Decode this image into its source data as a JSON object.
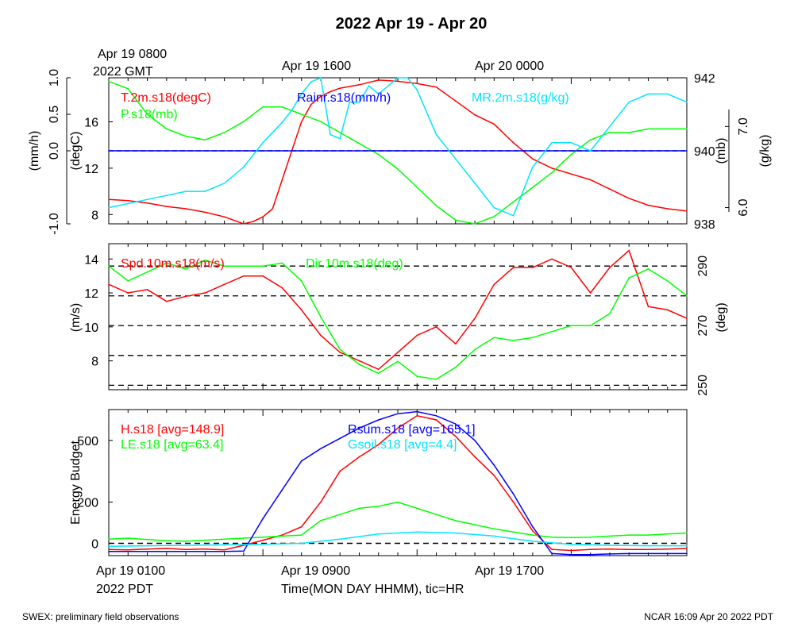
{
  "title": "2022 Apr 19 - Apr 20",
  "top_time_labels": {
    "start_line1": "Apr 19 0800",
    "start_line2": "2022 GMT",
    "mid": "Apr 19 1600",
    "end": "Apr 20 0000"
  },
  "bottom_time_labels": {
    "start": "Apr 19 0100",
    "tz": "2022 PDT",
    "mid": "Apr 19 0900",
    "end": "Apr 19 1700",
    "xlabel": "Time(MON DAY HHMM), tic=HR"
  },
  "footer": {
    "left": "SWEX: preliminary field observations",
    "right": "NCAR 16:09 Apr 20 2022 PDT"
  },
  "colors": {
    "red": "#ff0000",
    "green": "#00ff00",
    "blue": "#0000ff",
    "cyan": "#00e5ff"
  },
  "chart_data": [
    {
      "type": "line",
      "panel": "top",
      "x_units": "hours since Apr 19 0100 PDT",
      "xlim": [
        0,
        30
      ],
      "axes": {
        "rain": {
          "label": "(mm/h)",
          "ticks": [
            "-1.0",
            "0.0",
            "0.5",
            "1.0"
          ],
          "lim": [
            -1,
            1
          ]
        },
        "temp": {
          "label": "(degC)",
          "ticks": [
            "8",
            "12",
            "16"
          ],
          "lim": [
            7.2,
            19.8
          ]
        },
        "pres": {
          "label": "(mb)",
          "ticks": [
            "938",
            "940",
            "942"
          ],
          "lim": [
            938,
            942
          ]
        },
        "mr": {
          "label": "(g/kg)",
          "ticks": [
            "6.0",
            "7.0"
          ],
          "lim": [
            5.8,
            7.6
          ]
        }
      },
      "series": [
        {
          "name": "T.2m.s18(degC)",
          "color": "#ff0000",
          "axis": "temp",
          "x": [
            0,
            1,
            2,
            3,
            4,
            5,
            6,
            7,
            7.5,
            8,
            8.5,
            9,
            9.5,
            10,
            10.5,
            11,
            11.5,
            12,
            13,
            14,
            15,
            16,
            17,
            18,
            19,
            20,
            21,
            22,
            23,
            24,
            25,
            26,
            27,
            28,
            29,
            30
          ],
          "y": [
            9.3,
            9.2,
            9.0,
            8.7,
            8.5,
            8.2,
            7.8,
            7.2,
            7.4,
            7.8,
            8.5,
            11.0,
            13.5,
            16.0,
            17.5,
            18.2,
            18.6,
            18.9,
            19.2,
            19.6,
            19.5,
            19.3,
            19.0,
            17.8,
            16.6,
            15.8,
            14.2,
            12.8,
            12.0,
            11.5,
            11.0,
            10.2,
            9.4,
            8.8,
            8.5,
            8.3
          ]
        },
        {
          "name": "P.s18(mb)",
          "color": "#00ff00",
          "axis": "pres",
          "x": [
            0,
            1,
            2,
            3,
            4,
            5,
            6,
            7,
            8,
            9,
            10,
            11,
            12,
            13,
            14,
            15,
            16,
            17,
            18,
            19,
            20,
            21,
            22,
            23,
            24,
            25,
            26,
            27,
            28,
            29,
            30
          ],
          "y": [
            941.9,
            941.7,
            941.0,
            940.6,
            940.4,
            940.3,
            940.5,
            940.8,
            941.2,
            941.2,
            941.0,
            940.8,
            940.5,
            940.2,
            939.9,
            939.5,
            939.0,
            938.5,
            938.1,
            938.0,
            938.2,
            938.6,
            939.0,
            939.4,
            939.9,
            940.3,
            940.5,
            940.5,
            940.6,
            940.6,
            940.6
          ]
        },
        {
          "name": "Rainr.s18(mm/h)",
          "color": "#0000ff",
          "axis": "rain",
          "x": [
            0,
            30
          ],
          "y": [
            0,
            0
          ]
        },
        {
          "name": "MR.2m.s18(g/kg)",
          "color": "#00e5ff",
          "axis": "mr",
          "x": [
            0,
            1,
            2,
            3,
            4,
            5,
            6,
            7,
            8,
            9,
            9.5,
            10,
            10.5,
            11,
            11.5,
            12,
            12.5,
            13,
            13.5,
            14,
            14.5,
            15,
            15.5,
            16,
            17,
            18,
            19,
            20,
            21,
            22,
            23,
            24,
            25,
            26,
            27,
            28,
            29,
            30
          ],
          "y": [
            6.0,
            6.05,
            6.1,
            6.15,
            6.2,
            6.2,
            6.3,
            6.5,
            6.8,
            7.05,
            7.2,
            7.4,
            7.55,
            7.6,
            6.9,
            6.85,
            7.3,
            7.3,
            7.5,
            7.4,
            7.5,
            7.6,
            7.6,
            7.45,
            6.9,
            6.6,
            6.3,
            6.0,
            5.9,
            6.5,
            6.8,
            6.8,
            6.7,
            7.0,
            7.3,
            7.4,
            7.4,
            7.3
          ]
        }
      ]
    },
    {
      "type": "line",
      "panel": "middle",
      "x_units": "hours since Apr 19 0100 PDT",
      "xlim": [
        0,
        30
      ],
      "axes": {
        "spd": {
          "label": "(m/s)",
          "ticks": [
            "8",
            "10",
            "12",
            "14"
          ],
          "lim": [
            6.3,
            14.9
          ]
        },
        "dir": {
          "label": "(deg)",
          "ticks": [
            "250",
            "270",
            "290"
          ],
          "lim": [
            248.5,
            297.5
          ]
        }
      },
      "dir_gridlines": [
        250,
        260,
        270,
        280,
        290
      ],
      "series": [
        {
          "name": "Spd.10m.s18(m/s)",
          "color": "#ff0000",
          "axis": "spd",
          "x": [
            0,
            1,
            2,
            3,
            4,
            5,
            6,
            7,
            8,
            9,
            10,
            11,
            12,
            13,
            14,
            15,
            16,
            17,
            18,
            19,
            20,
            21,
            22,
            23,
            24,
            25,
            26,
            27,
            28,
            29,
            30
          ],
          "y": [
            12.5,
            12.0,
            12.2,
            11.5,
            11.8,
            12.0,
            12.5,
            13.0,
            13.0,
            12.3,
            11.0,
            9.5,
            8.5,
            8.0,
            7.5,
            8.5,
            9.5,
            10.0,
            9.0,
            10.5,
            12.5,
            13.5,
            13.5,
            14.0,
            13.5,
            12.0,
            13.5,
            14.5,
            11.2,
            11.0,
            10.5
          ]
        },
        {
          "name": "Dir.10m.s18(deg)",
          "color": "#00ff00",
          "axis": "dir",
          "x": [
            0,
            1,
            2,
            3,
            4,
            5,
            6,
            7,
            8,
            9,
            10,
            11,
            12,
            13,
            14,
            15,
            16,
            17,
            18,
            19,
            20,
            21,
            22,
            23,
            24,
            25,
            26,
            27,
            28,
            29,
            30
          ],
          "y": [
            290,
            285,
            288,
            291,
            289,
            292,
            290,
            290,
            290,
            291,
            285,
            273,
            262,
            257,
            254,
            258,
            253,
            252,
            256,
            262,
            266,
            265,
            266,
            268,
            270,
            270,
            274,
            286,
            289,
            285,
            280
          ]
        }
      ]
    },
    {
      "type": "line",
      "panel": "bottom",
      "x_units": "hours since Apr 19 0100 PDT",
      "xlim": [
        0,
        30
      ],
      "ylabel": "Energy Budget",
      "yticks": [
        "0",
        "200",
        "500"
      ],
      "ylim": [
        -60,
        650
      ],
      "series": [
        {
          "name": "H.s18",
          "stat": "[avg=148.9]",
          "color": "#ff0000",
          "x": [
            0,
            1,
            2,
            3,
            4,
            5,
            6,
            7,
            8,
            9,
            10,
            11,
            12,
            13,
            14,
            15,
            16,
            17,
            18,
            19,
            20,
            21,
            22,
            23,
            24,
            25,
            26,
            27,
            28,
            29,
            30
          ],
          "y": [
            -30,
            -32,
            -28,
            -25,
            -30,
            -28,
            -32,
            -10,
            15,
            40,
            80,
            200,
            350,
            420,
            480,
            560,
            620,
            600,
            520,
            420,
            330,
            200,
            60,
            -30,
            -35,
            -30,
            -28,
            -30,
            -30,
            -28,
            -25
          ]
        },
        {
          "name": "LE.s18",
          "stat": "[avg=63.4]",
          "color": "#00ff00",
          "x": [
            0,
            1,
            2,
            3,
            4,
            5,
            6,
            7,
            8,
            9,
            10,
            11,
            12,
            13,
            14,
            15,
            16,
            17,
            18,
            19,
            20,
            21,
            22,
            23,
            24,
            25,
            26,
            27,
            28,
            29,
            30
          ],
          "y": [
            20,
            25,
            18,
            12,
            10,
            15,
            20,
            25,
            30,
            35,
            40,
            110,
            140,
            170,
            180,
            200,
            170,
            140,
            110,
            90,
            70,
            55,
            40,
            30,
            28,
            30,
            35,
            40,
            40,
            45,
            50
          ]
        },
        {
          "name": "Rsum.s18",
          "stat": "[avg=165.1]",
          "color": "#0000ff",
          "x": [
            0,
            1,
            2,
            3,
            4,
            5,
            6,
            7,
            8,
            9,
            10,
            11,
            12,
            13,
            14,
            15,
            16,
            17,
            18,
            19,
            20,
            21,
            22,
            23,
            24,
            25,
            26,
            27,
            28,
            29,
            30
          ],
          "y": [
            -40,
            -40,
            -40,
            -40,
            -40,
            -40,
            -40,
            -38,
            120,
            260,
            400,
            460,
            510,
            560,
            600,
            630,
            640,
            620,
            580,
            500,
            380,
            240,
            80,
            -50,
            -55,
            -55,
            -52,
            -50,
            -50,
            -50,
            -50
          ]
        },
        {
          "name": "Gsoil.s18",
          "stat": "[avg=4.4]",
          "color": "#00e5ff",
          "x": [
            0,
            2,
            4,
            6,
            8,
            10,
            12,
            14,
            16,
            18,
            20,
            22,
            24,
            26,
            28,
            30
          ],
          "y": [
            -15,
            -12,
            -10,
            -8,
            -5,
            0,
            20,
            45,
            55,
            50,
            35,
            10,
            -5,
            -10,
            -12,
            -12
          ]
        }
      ]
    }
  ]
}
